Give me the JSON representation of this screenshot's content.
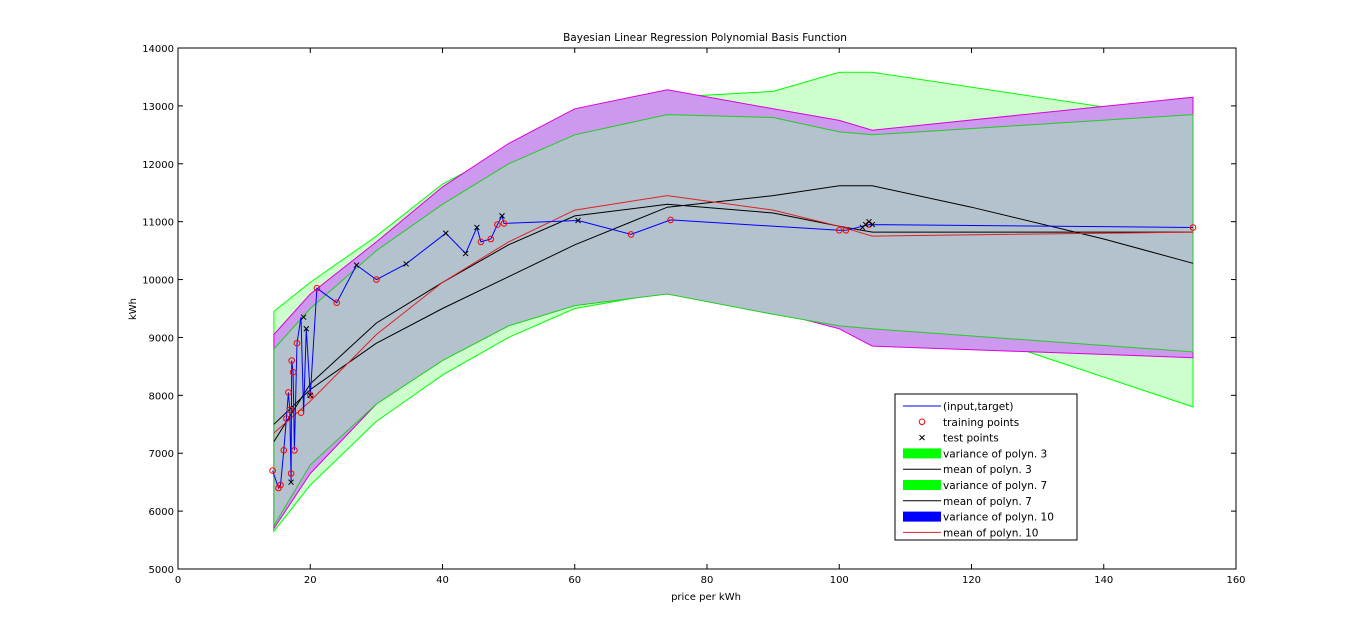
{
  "chart_data": {
    "type": "line",
    "title": "Bayesian Linear Regression Polynomial Basis Function",
    "xlabel": "price per kWh",
    "ylabel": "kWh",
    "xlim": [
      0,
      160
    ],
    "ylim": [
      5000,
      14000
    ],
    "x_ticks": [
      0,
      20,
      40,
      60,
      80,
      100,
      120,
      140,
      160
    ],
    "y_ticks": [
      5000,
      6000,
      7000,
      8000,
      9000,
      10000,
      11000,
      12000,
      13000,
      14000
    ],
    "grid": false,
    "legend_position": "bottom-right",
    "colors": {
      "input_target": "#0000ff",
      "training": "#ff0000",
      "test": "#000000",
      "variance_3": "#00ff00",
      "variance_7": "#00ff00",
      "variance_10": "#0000ff",
      "variance_3_fill": "#ccffcc",
      "variance_10_fill": "#cc99ee",
      "overlap_fill": "#b3c2cc",
      "band_7_edge": "#22cc22",
      "band_10_edge": "#dd00dd",
      "mean_10": "#dd2222",
      "mean_3": "#000000",
      "mean_7": "#000000"
    },
    "legend": [
      {
        "label": "(input,target)",
        "marker": "line",
        "color": "#0000ff"
      },
      {
        "label": "training points",
        "marker": "circle",
        "color": "#ff0000"
      },
      {
        "label": "test points",
        "marker": "cross",
        "color": "#000000"
      },
      {
        "label": "variance of polyn. 3",
        "marker": "patch",
        "color": "#00ff00"
      },
      {
        "label": "mean of polyn. 3",
        "marker": "line",
        "color": "#000000"
      },
      {
        "label": "variance of polyn. 7",
        "marker": "patch",
        "color": "#00ff00"
      },
      {
        "label": "mean of polyn. 7",
        "marker": "line",
        "color": "#000000"
      },
      {
        "label": "variance of polyn. 10",
        "marker": "patch",
        "color": "#0000ff"
      },
      {
        "label": "mean of polyn. 10",
        "marker": "line",
        "color": "#dd2222"
      }
    ],
    "series_input_target": {
      "x": [
        14.3,
        15.2,
        15.5,
        16.0,
        16.4,
        16.7,
        16.9,
        17.1,
        17.2,
        17.4,
        17.6,
        18.0,
        18.6,
        19.0,
        19.4,
        20.0,
        21.0,
        24.0,
        27.0,
        30.0,
        34.5,
        40.5,
        43.5,
        45.2,
        45.8,
        47.3,
        48.3,
        49.0,
        49.3,
        60.5,
        68.5,
        74.5,
        100.0,
        101.0,
        104.5,
        153.5
      ],
      "y": [
        6700,
        6400,
        6450,
        7050,
        7600,
        8050,
        7750,
        6500,
        8600,
        8400,
        7050,
        8900,
        9350,
        7700,
        9150,
        8000,
        9850,
        9600,
        10250,
        10000,
        10270,
        10800,
        10450,
        10900,
        10650,
        10700,
        10950,
        11100,
        10970,
        11020,
        10780,
        11030,
        10850,
        10850,
        10950,
        10900
      ]
    },
    "series_training": {
      "x": [
        14.3,
        15.2,
        15.5,
        16.0,
        16.4,
        16.7,
        16.9,
        17.1,
        17.2,
        17.4,
        17.6,
        18.0,
        18.6,
        20.0,
        21.0,
        24.0,
        30.0,
        45.8,
        47.3,
        48.3,
        49.3,
        68.5,
        74.5,
        100.0,
        101.0,
        104.5,
        153.5
      ],
      "y": [
        6700,
        6400,
        6450,
        7050,
        7600,
        8050,
        7750,
        6650,
        8600,
        8400,
        7050,
        8900,
        7700,
        8000,
        9850,
        9600,
        10000,
        10650,
        10700,
        10950,
        10970,
        10780,
        11030,
        10850,
        10850,
        10950,
        10900
      ]
    },
    "series_test": {
      "x": [
        17.1,
        19.0,
        19.4,
        20.0,
        27.0,
        34.5,
        40.5,
        43.5,
        45.2,
        49.0,
        60.5,
        103.5,
        104.0,
        104.5,
        105.0
      ],
      "y": [
        6500,
        9350,
        9150,
        8000,
        10250,
        10270,
        10800,
        10450,
        10900,
        11100,
        11020,
        10900,
        10950,
        11000,
        10950
      ]
    },
    "band_polyn_3": {
      "x": [
        14.5,
        20,
        30,
        40,
        50,
        60,
        74,
        90,
        100,
        105,
        153.5
      ],
      "upper": [
        9450,
        9950,
        10750,
        11650,
        12250,
        12750,
        13150,
        13250,
        13580,
        13580,
        12750
      ],
      "lower": [
        5650,
        6450,
        7550,
        8350,
        9000,
        9500,
        9780,
        9400,
        9650,
        9650,
        7800
      ]
    },
    "band_polyn_7": {
      "x": [
        14.5,
        20,
        30,
        40,
        50,
        60,
        74,
        90,
        100,
        105,
        153.5
      ],
      "upper": [
        8800,
        9500,
        10500,
        11300,
        12000,
        12500,
        12850,
        12800,
        12550,
        12500,
        12850
      ],
      "lower": [
        5750,
        6800,
        7850,
        8600,
        9200,
        9550,
        9750,
        9400,
        9200,
        9150,
        8750
      ]
    },
    "band_polyn_10": {
      "x": [
        14.5,
        20,
        30,
        40,
        50,
        60,
        74,
        90,
        100,
        105,
        153.5
      ],
      "upper": [
        9050,
        9750,
        10650,
        11600,
        12350,
        12950,
        13280,
        12950,
        12750,
        12580,
        13150
      ],
      "lower": [
        5700,
        6650,
        7850,
        8850,
        9650,
        9950,
        9750,
        9450,
        9150,
        8850,
        8650
      ]
    },
    "mean_polyn_3": {
      "x": [
        14.5,
        20,
        30,
        40,
        50,
        60,
        74,
        90,
        100,
        105,
        120,
        140,
        153.5
      ],
      "y": [
        7500,
        8100,
        8900,
        9500,
        10050,
        10600,
        11250,
        11450,
        11620,
        11620,
        11250,
        10700,
        10280
      ]
    },
    "mean_polyn_7": {
      "x": [
        14.5,
        20,
        30,
        40,
        50,
        60,
        74,
        90,
        100,
        105,
        153.5
      ],
      "y": [
        7200,
        8200,
        9250,
        9950,
        10600,
        11100,
        11300,
        11150,
        10920,
        10820,
        10820
      ]
    },
    "mean_polyn_10": {
      "x": [
        14.5,
        20,
        30,
        40,
        50,
        60,
        74,
        90,
        100,
        105,
        153.5
      ],
      "y": [
        7350,
        7900,
        9050,
        9950,
        10650,
        11200,
        11450,
        11200,
        10920,
        10750,
        10820
      ]
    }
  }
}
